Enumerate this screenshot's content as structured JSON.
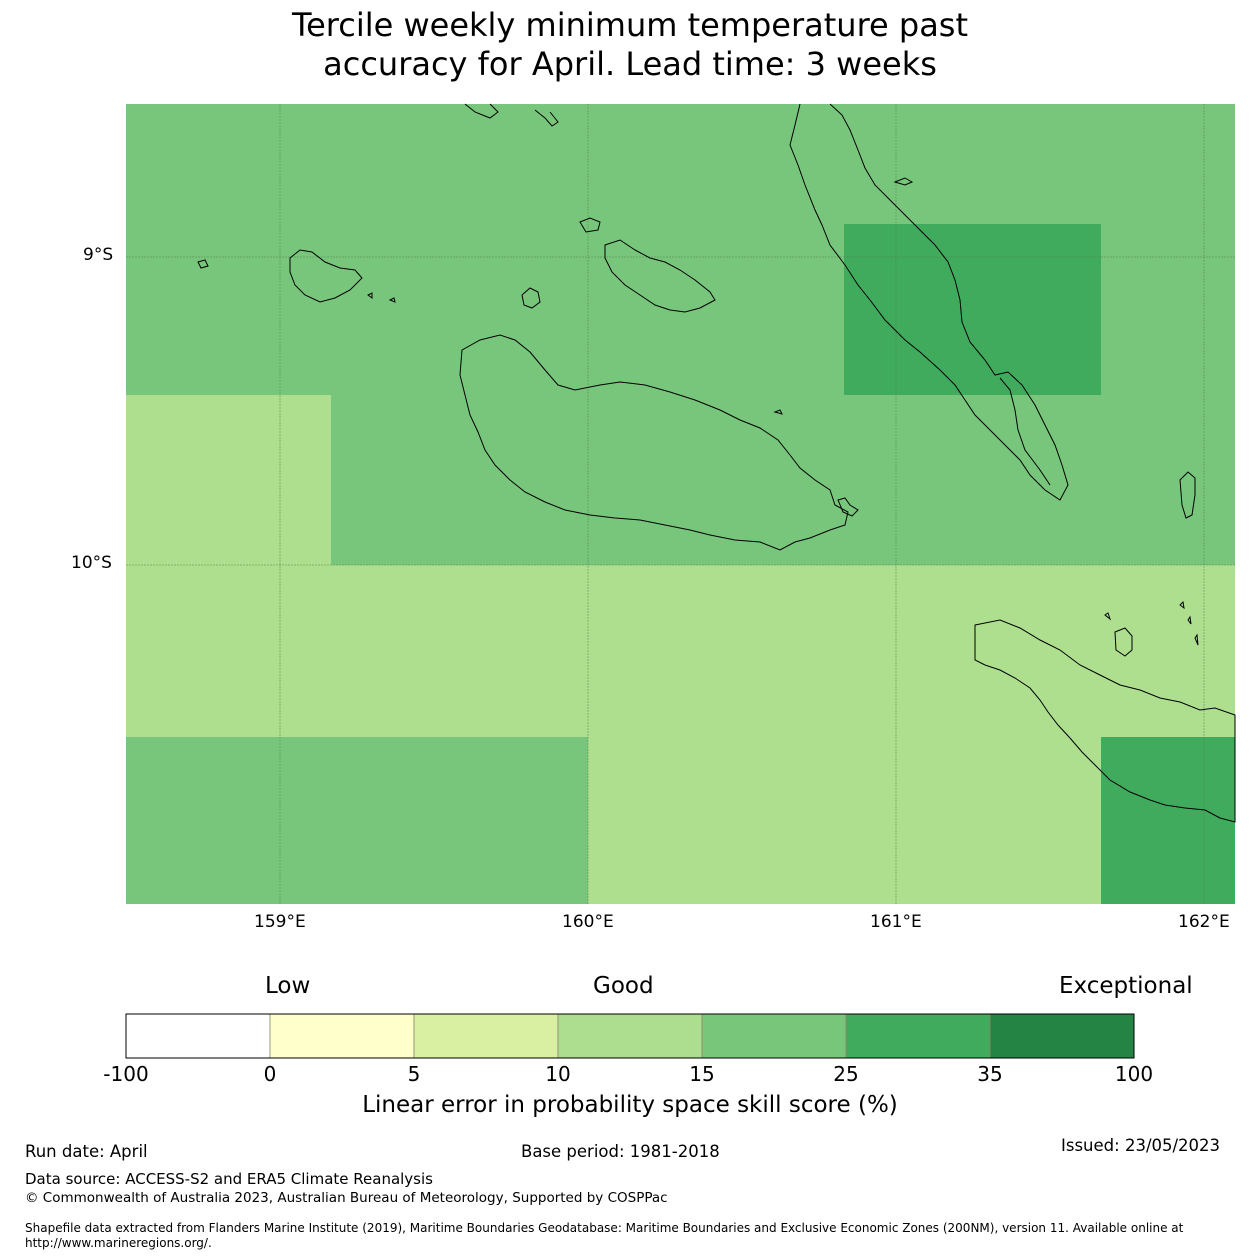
{
  "title_line1": "Tercile weekly minimum temperature past",
  "title_line2": "accuracy for April. Lead time: 3 weeks",
  "axes": {
    "lat_labels": [
      "9°S",
      "10°S"
    ],
    "lon_labels": [
      "159°E",
      "160°E",
      "161°E",
      "162°E"
    ]
  },
  "colors": {
    "c_10_15": "#addf8e",
    "c_15_25": "#78c67b",
    "c_25_35": "#41ab5d",
    "coast": "#000000"
  },
  "colorbar": {
    "word_low": "Low",
    "word_good": "Good",
    "word_exceptional": "Exceptional",
    "bins": [
      {
        "from": -100,
        "to": 0,
        "color": "#ffffff"
      },
      {
        "from": 0,
        "to": 5,
        "color": "#ffffcc"
      },
      {
        "from": 5,
        "to": 10,
        "color": "#d9f0a3"
      },
      {
        "from": 10,
        "to": 15,
        "color": "#addd8e"
      },
      {
        "from": 15,
        "to": 25,
        "color": "#78c679"
      },
      {
        "from": 25,
        "to": 35,
        "color": "#41ab5d"
      },
      {
        "from": 35,
        "to": 100,
        "color": "#238443"
      }
    ],
    "ticks": [
      "-100",
      "0",
      "5",
      "10",
      "15",
      "25",
      "35",
      "100"
    ],
    "label": "Linear error in probability space skill score (%)"
  },
  "footer": {
    "run_date": "Run date: April",
    "base_period": "Base period: 1981-2018",
    "issued": "Issued: 23/05/2023",
    "data_source": "Data source: ACCESS-S2 and ERA5 Climate Reanalysis",
    "copyright": "© Commonwealth of Australia 2023, Australian Bureau of Meteorology, Supported by COSPPac",
    "shapefile_line1": "Shapefile data extracted from Flanders Marine Institute (2019), Maritime Boundaries Geodatabase: Maritime Boundaries and Exclusive Economic Zones (200NM), version 11. Available online at",
    "shapefile_line2": "http://www.marineregions.org/."
  }
}
